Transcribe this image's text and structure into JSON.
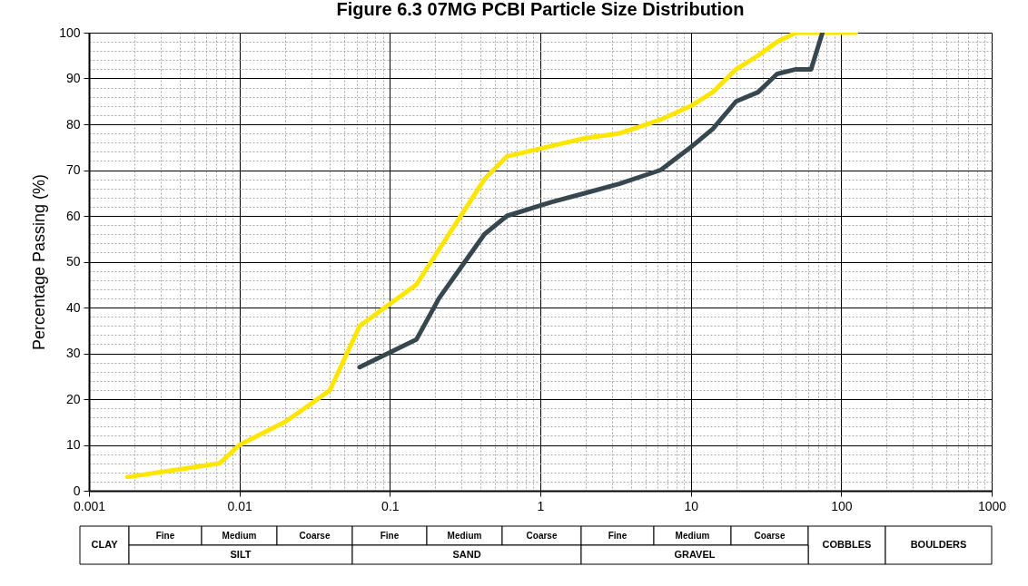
{
  "chart_data": {
    "type": "line",
    "title": "Figure 6.3 07MG PCBI Particle Size Distribution",
    "ylabel": "Percentage Passing (%)",
    "log": "x",
    "grid": true,
    "xlim": [
      0.001,
      1000
    ],
    "ylim": [
      0,
      100
    ],
    "xticks": [
      0.001,
      {
        "value": 0.002,
        "label": null
      },
      {
        "value": 0.003,
        "label": null
      },
      {
        "value": 0.004,
        "label": null
      },
      {
        "value": 0.005,
        "label": null
      },
      {
        "value": 0.006,
        "label": null
      },
      {
        "value": 0.007,
        "label": null
      },
      {
        "value": 0.008,
        "label": null
      },
      {
        "value": 0.009,
        "label": null
      },
      0.01,
      {
        "value": 0.02,
        "label": null
      },
      {
        "value": 0.03,
        "label": null
      },
      {
        "value": 0.04,
        "label": null
      },
      {
        "value": 0.05,
        "label": null
      },
      {
        "value": 0.06,
        "label": null
      },
      {
        "value": 0.07,
        "label": null
      },
      {
        "value": 0.08,
        "label": null
      },
      {
        "value": 0.09,
        "label": null
      },
      0.1,
      {
        "value": 0.2,
        "label": null
      },
      {
        "value": 0.3,
        "label": null
      },
      {
        "value": 0.4,
        "label": null
      },
      {
        "value": 0.5,
        "label": null
      },
      {
        "value": 0.6,
        "label": null
      },
      {
        "value": 0.7,
        "label": null
      },
      {
        "value": 0.8,
        "label": null
      },
      {
        "value": 0.9,
        "label": null
      },
      1,
      {
        "value": 2,
        "label": null
      },
      {
        "value": 3,
        "label": null
      },
      {
        "value": 4,
        "label": null
      },
      {
        "value": 5,
        "label": null
      },
      {
        "value": 6,
        "label": null
      },
      {
        "value": 7,
        "label": null
      },
      {
        "value": 8,
        "label": null
      },
      {
        "value": 9,
        "label": null
      },
      10,
      {
        "value": 20,
        "label": null
      },
      {
        "value": 30,
        "label": null
      },
      {
        "value": 40,
        "label": null
      },
      {
        "value": 50,
        "label": null
      },
      {
        "value": 60,
        "label": null
      },
      {
        "value": 70,
        "label": null
      },
      {
        "value": 80,
        "label": null
      },
      {
        "value": 90,
        "label": null
      },
      100,
      {
        "value": 200,
        "label": null
      },
      {
        "value": 300,
        "label": null
      },
      {
        "value": 400,
        "label": null
      },
      {
        "value": 500,
        "label": null
      },
      {
        "value": 600,
        "label": null
      },
      {
        "value": 700,
        "label": null
      },
      {
        "value": 800,
        "label": null
      },
      {
        "value": 900,
        "label": null
      },
      1000
    ],
    "yticks": [
      0,
      {
        "value": 2,
        "label": null
      },
      {
        "value": 4,
        "label": null
      },
      {
        "value": 6,
        "label": null
      },
      {
        "value": 8,
        "label": null
      },
      10,
      {
        "value": 12,
        "label": null
      },
      {
        "value": 14,
        "label": null
      },
      {
        "value": 16,
        "label": null
      },
      {
        "value": 18,
        "label": null
      },
      20,
      {
        "value": 22,
        "label": null
      },
      {
        "value": 24,
        "label": null
      },
      {
        "value": 26,
        "label": null
      },
      {
        "value": 28,
        "label": null
      },
      30,
      {
        "value": 32,
        "label": null
      },
      {
        "value": 34,
        "label": null
      },
      {
        "value": 36,
        "label": null
      },
      {
        "value": 38,
        "label": null
      },
      40,
      {
        "value": 42,
        "label": null
      },
      {
        "value": 44,
        "label": null
      },
      {
        "value": 46,
        "label": null
      },
      {
        "value": 48,
        "label": null
      },
      50,
      {
        "value": 52,
        "label": null
      },
      {
        "value": 54,
        "label": null
      },
      {
        "value": 56,
        "label": null
      },
      {
        "value": 58,
        "label": null
      },
      60,
      {
        "value": 62,
        "label": null
      },
      {
        "value": 64,
        "label": null
      },
      {
        "value": 66,
        "label": null
      },
      {
        "value": 68,
        "label": null
      },
      70,
      {
        "value": 72,
        "label": null
      },
      {
        "value": 74,
        "label": null
      },
      {
        "value": 76,
        "label": null
      },
      {
        "value": 78,
        "label": null
      },
      80,
      {
        "value": 82,
        "label": null
      },
      {
        "value": 84,
        "label": null
      },
      {
        "value": 86,
        "label": null
      },
      {
        "value": 88,
        "label": null
      },
      90,
      {
        "value": 92,
        "label": null
      },
      {
        "value": 94,
        "label": null
      },
      {
        "value": 96,
        "label": null
      },
      {
        "value": 98,
        "label": null
      },
      100
    ],
    "series": [
      {
        "color": "#ffe600",
        "x": [
          0.0018,
          0.0074,
          0.01,
          0.02,
          0.03,
          0.04,
          0.063,
          0.15,
          0.425,
          0.6,
          2,
          3.35,
          6.3,
          10,
          14,
          20,
          28,
          37.5,
          50,
          125
        ],
        "values": [
          3,
          6,
          10,
          15,
          19,
          22,
          36,
          45,
          68,
          73,
          77,
          78,
          81,
          84,
          87,
          92,
          95,
          98,
          100,
          100
        ]
      },
      {
        "color": "#37474f",
        "x": [
          0.063,
          0.15,
          0.212,
          0.425,
          0.6,
          1.18,
          2,
          3.35,
          6.3,
          10,
          14,
          20,
          28,
          37.5,
          50,
          63,
          75
        ],
        "values": [
          27,
          33,
          42,
          56,
          60,
          63,
          65,
          67,
          70,
          75,
          79,
          85,
          87,
          91,
          92,
          92,
          100
        ]
      }
    ],
    "annotations": [
      "CLAY",
      "Fine",
      "Medium",
      "Coarse",
      "Fine",
      "Medium",
      "Coarse",
      "Fine",
      "Medium",
      "Coarse",
      "COBBLES",
      "BOULDERS",
      "SILT",
      "SAND",
      "GRAVEL"
    ]
  }
}
